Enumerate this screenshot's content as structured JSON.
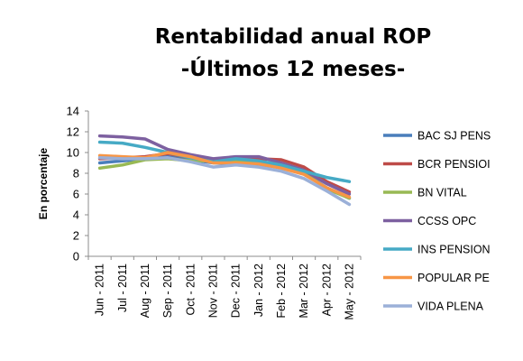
{
  "chart_data": {
    "type": "line",
    "title": "Rentabilidad anual ROP",
    "subtitle": "-Últimos 12 meses-",
    "xlabel": "",
    "ylabel": "En porcentaje",
    "ylim": [
      0,
      14
    ],
    "yticks": [
      "0",
      "2",
      "4",
      "6",
      "8",
      "10",
      "12",
      "14"
    ],
    "grid": false,
    "legend_position": "right",
    "categories": [
      "Jun - 2011",
      "Jul - 2011",
      "Aug - 2011",
      "Sep - 2011",
      "Oct - 2011",
      "Nov - 2011",
      "Dec - 2011",
      "Jan - 2012",
      "Feb - 2012",
      "Mar - 2012",
      "Apr - 2012",
      "May - 2012"
    ],
    "series": [
      {
        "name": "BAC SJ PENS",
        "color": "#4a7ebb",
        "values": [
          9.0,
          9.2,
          9.4,
          9.6,
          9.3,
          9.0,
          8.9,
          8.8,
          8.6,
          8.0,
          6.6,
          5.6
        ]
      },
      {
        "name": "BCR PENSIOI",
        "color": "#be4b48",
        "values": [
          9.4,
          9.5,
          9.6,
          9.9,
          9.5,
          9.2,
          9.3,
          9.4,
          9.3,
          8.6,
          7.2,
          6.2
        ]
      },
      {
        "name": "BN VITAL",
        "color": "#98b954",
        "values": [
          8.5,
          8.8,
          9.3,
          9.4,
          9.2,
          9.2,
          9.1,
          9.0,
          8.7,
          8.1,
          6.5,
          5.6
        ]
      },
      {
        "name": "CCSS OPC",
        "color": "#7d60a0",
        "values": [
          11.6,
          11.5,
          11.3,
          10.3,
          9.8,
          9.4,
          9.6,
          9.6,
          9.0,
          8.3,
          7.0,
          6.0
        ]
      },
      {
        "name": "INS PENSION",
        "color": "#46aac5",
        "values": [
          11.0,
          10.9,
          10.5,
          10.0,
          9.5,
          9.1,
          9.4,
          9.2,
          8.8,
          8.2,
          7.6,
          7.2
        ]
      },
      {
        "name": "POPULAR PE",
        "color": "#f79646",
        "values": [
          9.7,
          9.6,
          9.5,
          10.0,
          9.6,
          9.0,
          9.0,
          8.9,
          8.5,
          7.9,
          6.6,
          5.7
        ]
      },
      {
        "name": "VIDA PLENA",
        "color": "#9bb0d8",
        "values": [
          9.5,
          9.4,
          9.4,
          9.5,
          9.1,
          8.6,
          8.8,
          8.6,
          8.2,
          7.5,
          6.3,
          5.0
        ]
      }
    ]
  }
}
